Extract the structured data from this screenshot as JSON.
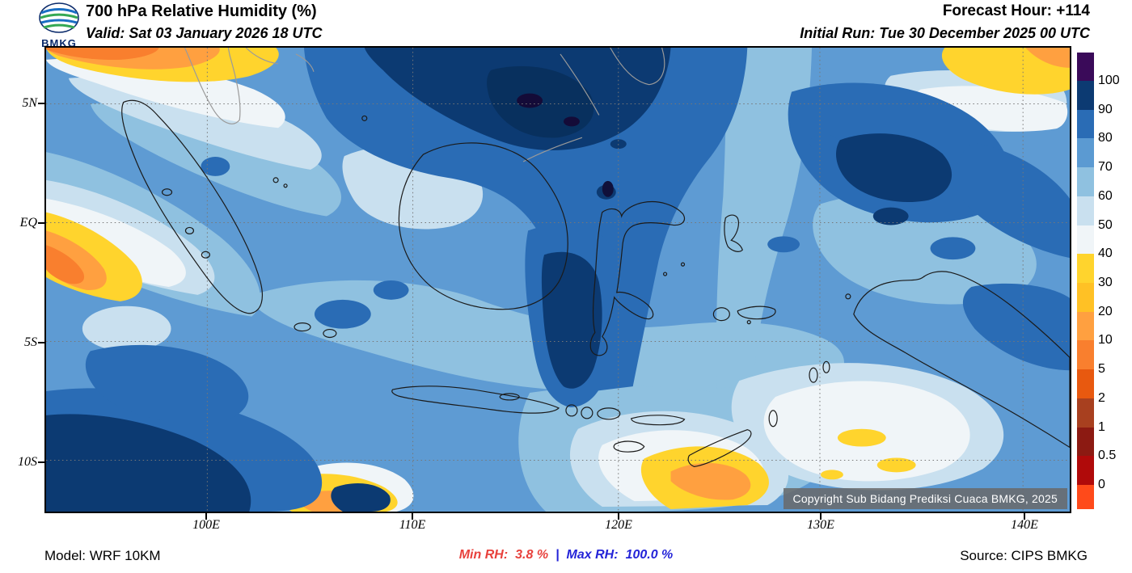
{
  "header": {
    "logo_text": "BMKG",
    "title": "700 hPa Relative Humidity (%)",
    "valid": "Valid: Sat 03 January 2026 18 UTC",
    "forecast_hour": "Forecast Hour: +114",
    "initial_run": "Initial Run: Tue 30 December 2025 00 UTC"
  },
  "map": {
    "lat_labels": [
      "5N",
      "EQ",
      "5S",
      "10S"
    ],
    "lon_labels": [
      "100E",
      "110E",
      "120E",
      "130E",
      "140E"
    ],
    "copyright": "Copyright Sub Bidang Prediksi Cuaca BMKG, 2025"
  },
  "colorbar": {
    "title": "Relative Humidity (%)",
    "tick_labels": [
      "100",
      "90",
      "80",
      "70",
      "60",
      "50",
      "40",
      "30",
      "20",
      "10",
      "5",
      "2",
      "1",
      "0.5",
      "0"
    ],
    "segment_colors": [
      "#3a0a59",
      "#0c3a72",
      "#2a6cb5",
      "#5b9ad2",
      "#8fc1e0",
      "#c9e0ef",
      "#f0f5f8",
      "#ffd42d",
      "#ffc125",
      "#ffa040",
      "#f97f2e",
      "#e8590f",
      "#a8401f",
      "#8c1a12",
      "#b00a0a",
      "#ff4a1a"
    ]
  },
  "footer": {
    "model": "Model: WRF 10KM",
    "min_label": "Min RH:",
    "min_value": "3.8 %",
    "separator": "|",
    "max_label": "Max RH:",
    "max_value": "100.0 %",
    "source": "Source: CIPS BMKG"
  },
  "colors": {
    "min_rh_text": "#e8413c",
    "max_rh_text": "#2424d8",
    "map_base": "#5e9bd3",
    "coastline": "#1a1a1a",
    "foreign_coastline": "#9a9a9a"
  }
}
